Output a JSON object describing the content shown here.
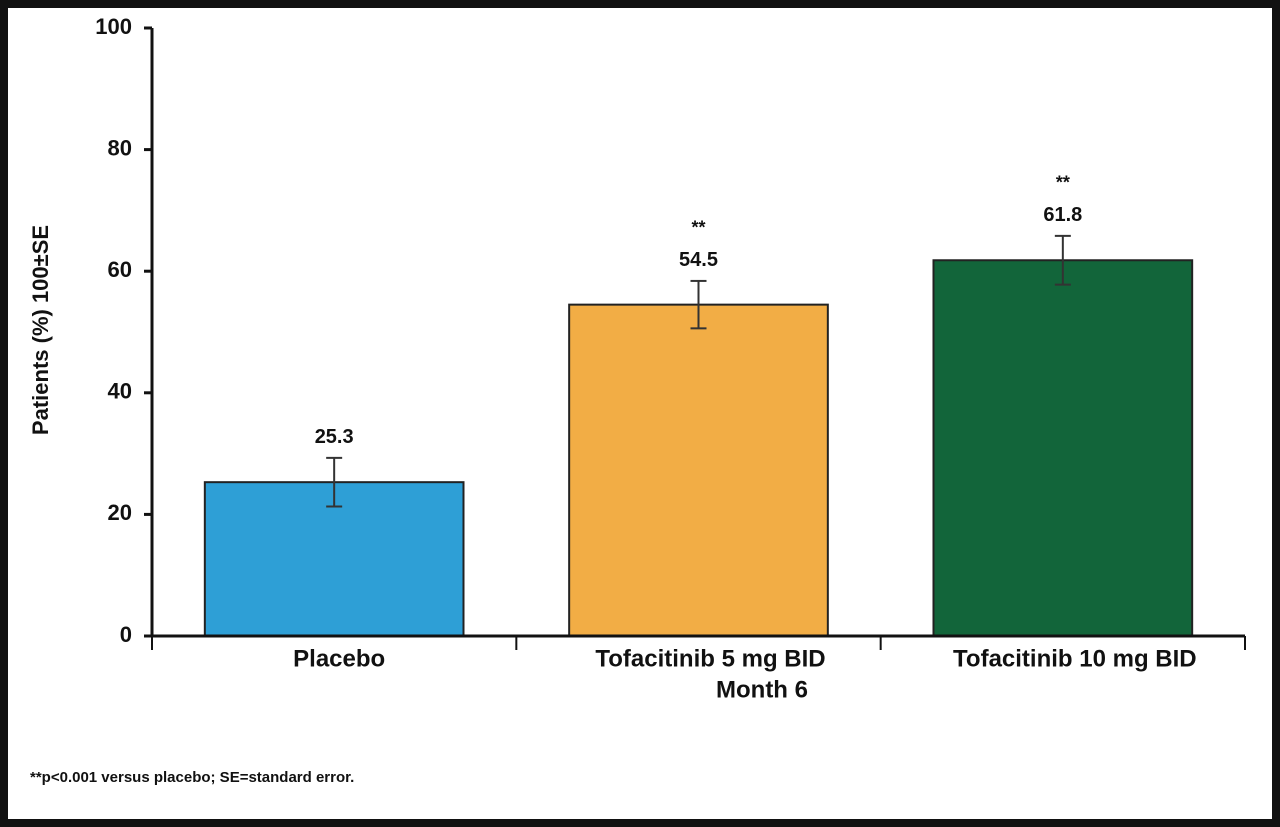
{
  "chart_data": {
    "type": "bar",
    "y_label": "Patients (%) 100±SE",
    "x_label": "Month 6",
    "footnote": "**p<0.001 versus placebo; SE=standard error.",
    "categories": [
      "Placebo",
      "Tofacitinib 5 mg BID",
      "Tofacitinib 10 mg BID"
    ],
    "values": [
      25.3,
      54.5,
      61.8
    ],
    "errors": [
      4.0,
      3.9,
      4.0
    ],
    "colors": [
      "#2e9fd6",
      "#f2ad45",
      "#12653a"
    ],
    "significance": [
      null,
      "**",
      "**"
    ],
    "ylim": [
      0,
      100
    ],
    "yticks": [
      0,
      20,
      40,
      60,
      80,
      100
    ],
    "grid": false
  }
}
